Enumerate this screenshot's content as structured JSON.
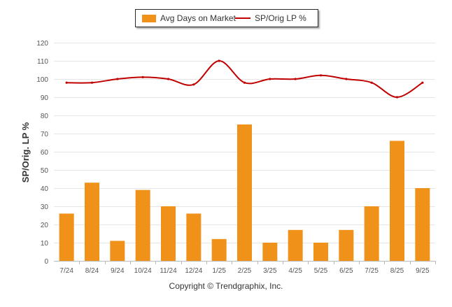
{
  "chart_data": {
    "type": "bar",
    "title": "",
    "xlabel": "",
    "ylabel": "SP/Orig. LP %",
    "ylim": [
      0,
      120
    ],
    "yticks": [
      0,
      10,
      20,
      30,
      40,
      50,
      60,
      70,
      80,
      90,
      100,
      110,
      120
    ],
    "grid": true,
    "legend_position": "top-center",
    "categories": [
      "7/24",
      "8/24",
      "9/24",
      "10/24",
      "11/24",
      "12/24",
      "1/25",
      "2/25",
      "3/25",
      "4/25",
      "5/25",
      "6/25",
      "7/25",
      "8/25",
      "9/25"
    ],
    "series": [
      {
        "name": "Avg Days on Market",
        "type": "bar",
        "color": "#f0921a",
        "values": [
          26,
          43,
          11,
          39,
          30,
          26,
          12,
          75,
          10,
          17,
          10,
          17,
          30,
          66,
          40
        ]
      },
      {
        "name": "SP/Orig LP %",
        "type": "line",
        "color": "#c00000",
        "values": [
          98,
          98,
          100,
          101,
          100,
          97,
          110,
          98,
          100,
          100,
          102,
          100,
          98,
          90,
          98
        ]
      }
    ]
  },
  "legend": {
    "bar_label": "Avg Days on Market",
    "line_label": "SP/Orig LP %"
  },
  "footer": {
    "copyright": "Copyright © Trendgraphix, Inc."
  }
}
